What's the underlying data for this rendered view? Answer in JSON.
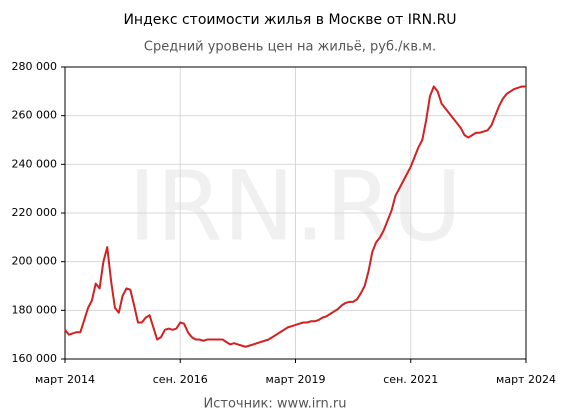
{
  "chart_data": {
    "type": "line",
    "title": "Индекс стоимости жилья в Москве от IRN.RU",
    "subtitle": "Средний уровень цен на жильё, руб./кв.м.",
    "watermark": "IRN.RU",
    "source": "Источник: www.irn.ru",
    "x": [
      "2014-03",
      "2014-04",
      "2014-05",
      "2014-06",
      "2014-07",
      "2014-08",
      "2014-09",
      "2014-10",
      "2014-11",
      "2014-12",
      "2015-01",
      "2015-02",
      "2015-03",
      "2015-04",
      "2015-05",
      "2015-06",
      "2015-07",
      "2015-08",
      "2015-09",
      "2015-10",
      "2015-11",
      "2015-12",
      "2016-01",
      "2016-02",
      "2016-03",
      "2016-04",
      "2016-05",
      "2016-06",
      "2016-07",
      "2016-08",
      "2016-09",
      "2016-10",
      "2016-11",
      "2016-12",
      "2017-01",
      "2017-02",
      "2017-03",
      "2017-04",
      "2017-05",
      "2017-06",
      "2017-07",
      "2017-08",
      "2017-09",
      "2017-10",
      "2017-11",
      "2017-12",
      "2018-01",
      "2018-02",
      "2018-03",
      "2018-04",
      "2018-05",
      "2018-06",
      "2018-07",
      "2018-08",
      "2018-09",
      "2018-10",
      "2018-11",
      "2018-12",
      "2019-01",
      "2019-02",
      "2019-03",
      "2019-04",
      "2019-05",
      "2019-06",
      "2019-07",
      "2019-08",
      "2019-09",
      "2019-10",
      "2019-11",
      "2019-12",
      "2020-01",
      "2020-02",
      "2020-03",
      "2020-04",
      "2020-05",
      "2020-06",
      "2020-07",
      "2020-08",
      "2020-09",
      "2020-10",
      "2020-11",
      "2020-12",
      "2021-01",
      "2021-02",
      "2021-03",
      "2021-04",
      "2021-05",
      "2021-06",
      "2021-07",
      "2021-08",
      "2021-09",
      "2021-10",
      "2021-11",
      "2021-12",
      "2022-01",
      "2022-02",
      "2022-03",
      "2022-04",
      "2022-05",
      "2022-06",
      "2022-07",
      "2022-08",
      "2022-09",
      "2022-10",
      "2022-11",
      "2022-12",
      "2023-01",
      "2023-02",
      "2023-03",
      "2023-04",
      "2023-05",
      "2023-06",
      "2023-07",
      "2023-08",
      "2023-09",
      "2023-10",
      "2023-11",
      "2023-12",
      "2024-01",
      "2024-02",
      "2024-03"
    ],
    "series": [
      {
        "name": "Индекс",
        "color": "#d42020",
        "values": [
          172000,
          170000,
          170500,
          171000,
          171000,
          176000,
          181000,
          184000,
          191000,
          189000,
          200000,
          206000,
          192000,
          181000,
          179000,
          186000,
          189000,
          188500,
          182000,
          175000,
          175000,
          177000,
          178000,
          173000,
          168000,
          169000,
          172000,
          172500,
          172000,
          172500,
          175000,
          174500,
          171000,
          169000,
          168000,
          168000,
          167500,
          168000,
          168000,
          168000,
          168000,
          168000,
          167000,
          166000,
          166500,
          166000,
          165500,
          165000,
          165500,
          166000,
          166500,
          167000,
          167500,
          168000,
          169000,
          170000,
          171000,
          172000,
          173000,
          173500,
          174000,
          174500,
          175000,
          175000,
          175500,
          175500,
          176000,
          177000,
          177500,
          178500,
          179500,
          180500,
          182000,
          183000,
          183500,
          183500,
          184500,
          187000,
          190000,
          196000,
          204000,
          208000,
          210000,
          213000,
          217000,
          221000,
          227000,
          230000,
          233000,
          236000,
          239000,
          243000,
          247000,
          250000,
          258000,
          268000,
          272000,
          270000,
          265000,
          263000,
          261000,
          259000,
          257000,
          255000,
          252000,
          251000,
          252000,
          253000,
          253000,
          253500,
          254000,
          256000,
          260000,
          264000,
          267000,
          269000,
          270000,
          271000,
          271500,
          272000,
          272000
        ]
      }
    ],
    "xlim": [
      "2014-03",
      "2024-03"
    ],
    "xticks": [
      {
        "value": "2014-03",
        "label": "март 2014"
      },
      {
        "value": "2016-09",
        "label": "сен. 2016"
      },
      {
        "value": "2019-03",
        "label": "март 2019"
      },
      {
        "value": "2021-09",
        "label": "сен. 2021"
      },
      {
        "value": "2024-03",
        "label": "март 2024"
      }
    ],
    "ylim": [
      160000,
      280000
    ],
    "yticks": [
      {
        "value": 160000,
        "label": "160 000"
      },
      {
        "value": 180000,
        "label": "180 000"
      },
      {
        "value": 200000,
        "label": "200 000"
      },
      {
        "value": 220000,
        "label": "220 000"
      },
      {
        "value": 240000,
        "label": "240 000"
      },
      {
        "value": 260000,
        "label": "260 000"
      },
      {
        "value": 280000,
        "label": "280 000"
      }
    ],
    "grid": true
  }
}
